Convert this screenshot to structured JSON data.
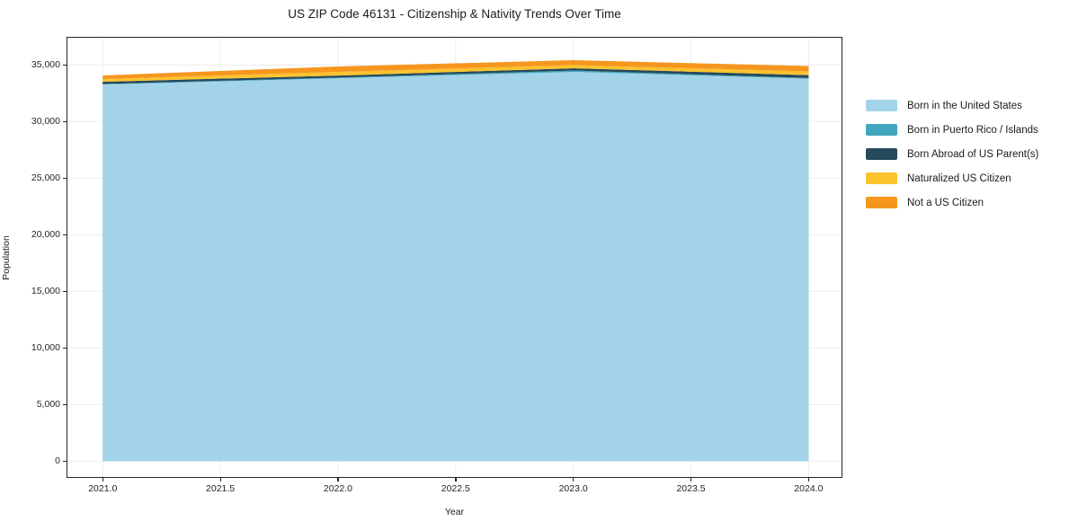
{
  "chart_data": {
    "type": "area",
    "stacked": true,
    "title": "US ZIP Code 46131 - Citizenship & Nativity Trends Over Time",
    "xlabel": "Year",
    "ylabel": "Population",
    "x": [
      2021,
      2022,
      2023,
      2024
    ],
    "series": [
      {
        "name": "Born in the United States",
        "color": "#a3d3e8",
        "values": [
          33270,
          33820,
          34380,
          33780
        ]
      },
      {
        "name": "Born in Puerto Rico / Islands",
        "color": "#41a7bf",
        "values": [
          40,
          60,
          120,
          70
        ]
      },
      {
        "name": "Born Abroad of US Parent(s)",
        "color": "#26495c",
        "values": [
          200,
          180,
          200,
          250
        ]
      },
      {
        "name": "Naturalized US Citizen",
        "color": "#fcc32e",
        "values": [
          240,
          320,
          280,
          320
        ]
      },
      {
        "name": "Not a US Citizen",
        "color": "#f6961e",
        "values": [
          320,
          480,
          440,
          480
        ]
      }
    ],
    "totals": [
      34070,
      34860,
      35420,
      34900
    ],
    "xlim": [
      2020.85,
      2024.14
    ],
    "ylim": [
      -1400,
      37400
    ],
    "x_ticks": [
      {
        "value": 2021.0,
        "label": "2021.0"
      },
      {
        "value": 2021.5,
        "label": "2021.5"
      },
      {
        "value": 2022.0,
        "label": "2022.0"
      },
      {
        "value": 2022.5,
        "label": "2022.5"
      },
      {
        "value": 2023.0,
        "label": "2023.0"
      },
      {
        "value": 2023.5,
        "label": "2023.5"
      },
      {
        "value": 2024.0,
        "label": "2024.0"
      }
    ],
    "y_ticks": [
      {
        "value": 0,
        "label": "0"
      },
      {
        "value": 5000,
        "label": "5,000"
      },
      {
        "value": 10000,
        "label": "10,000"
      },
      {
        "value": 15000,
        "label": "15,000"
      },
      {
        "value": 20000,
        "label": "20,000"
      },
      {
        "value": 25000,
        "label": "25,000"
      },
      {
        "value": 30000,
        "label": "30,000"
      },
      {
        "value": 35000,
        "label": "35,000"
      }
    ],
    "grid": true,
    "grid_color": "#ececec",
    "spine_color": "#262626",
    "legend_position": "outside-right"
  }
}
